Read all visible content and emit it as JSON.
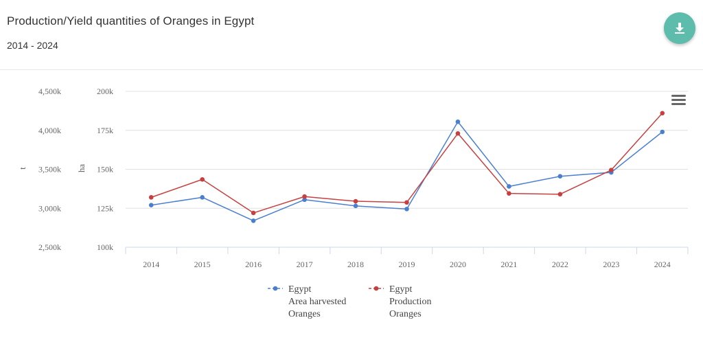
{
  "header": {
    "title": "Production/Yield quantities of Oranges in Egypt",
    "subtitle": "2014 - 2024"
  },
  "icons": {
    "download": "download-icon",
    "menu": "hamburger-menu-icon"
  },
  "colors": {
    "accent": "#5dbcac",
    "series_area": "#4a7fd0",
    "series_production": "#c64040",
    "grid": "#e0e0e0"
  },
  "chart_data": {
    "type": "line",
    "x": [
      "2014",
      "2015",
      "2016",
      "2017",
      "2018",
      "2019",
      "2020",
      "2021",
      "2022",
      "2023",
      "2024"
    ],
    "axes": {
      "left_outer": {
        "label": "t",
        "ticks": [
          "2,500k",
          "3,000k",
          "3,500k",
          "4,000k",
          "4,500k"
        ],
        "range": [
          2500000,
          4500000
        ]
      },
      "left_inner": {
        "label": "ha",
        "ticks": [
          "100k",
          "125k",
          "150k",
          "175k",
          "200k"
        ],
        "range": [
          100000,
          200000
        ]
      }
    },
    "series": [
      {
        "name": "Egypt Area harvested Oranges",
        "legend": [
          "Egypt",
          "Area harvested",
          "Oranges"
        ],
        "axis": "left_inner",
        "color": "#4a7fd0",
        "values": [
          127000,
          132000,
          117000,
          130500,
          126500,
          124500,
          180500,
          139000,
          145500,
          148000,
          174000
        ]
      },
      {
        "name": "Egypt Production Oranges",
        "legend": [
          "Egypt",
          "Production",
          "Oranges"
        ],
        "axis": "left_outer",
        "color": "#c64040",
        "values": [
          3140000,
          3370000,
          2940000,
          3150000,
          3090000,
          3075000,
          3960000,
          3190000,
          3180000,
          3490000,
          4220000
        ]
      }
    ],
    "grid": true,
    "legend_position": "bottom-center"
  }
}
